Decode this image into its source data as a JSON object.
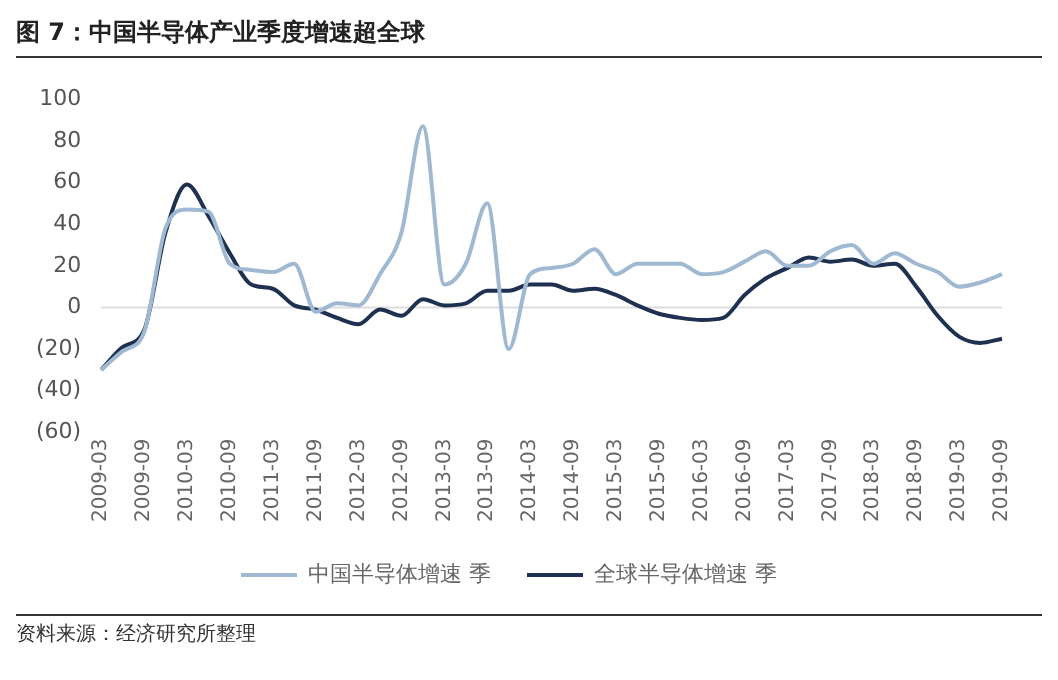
{
  "chart_data": {
    "type": "line",
    "title": "图 7：中国半导体产业季度增速超全球",
    "categories": [
      "2009-03",
      null,
      "2009-09",
      null,
      "2010-03",
      null,
      "2010-09",
      null,
      "2011-03",
      null,
      "2011-09",
      null,
      "2012-03",
      null,
      "2012-09",
      null,
      "2013-03",
      null,
      "2013-09",
      null,
      "2014-03",
      null,
      "2014-09",
      null,
      "2015-03",
      null,
      "2015-09",
      null,
      "2016-03",
      null,
      "2016-09",
      null,
      "2017-03",
      null,
      "2017-09",
      null,
      "2018-03",
      null,
      "2018-09",
      null,
      "2019-03",
      null,
      "2019-09"
    ],
    "series": [
      {
        "name": "中国半导体增速 季",
        "color": "#9fb9d3",
        "values": [
          -30,
          -21,
          -12,
          38,
          47,
          46,
          21,
          18,
          17,
          21,
          -2,
          2,
          1,
          16,
          36,
          87,
          11,
          21,
          50,
          -20,
          16,
          19,
          21,
          28,
          16,
          21,
          21,
          21,
          16,
          17,
          22,
          27,
          20,
          20,
          27,
          30,
          21,
          26,
          21,
          17,
          10,
          12,
          16
        ]
      },
      {
        "name": "全球半导体增速 季",
        "color": "#1f3150",
        "values": [
          -30,
          -19,
          -11,
          36,
          59,
          44,
          26,
          11,
          9,
          1,
          -1,
          -5,
          -8,
          -1,
          -4,
          4,
          1,
          2,
          8,
          8,
          11,
          11,
          8,
          9,
          6,
          1,
          -3,
          -5,
          -6,
          -5,
          6,
          14,
          19,
          24,
          22,
          23,
          20,
          21,
          10,
          -4,
          -14,
          -17,
          -15
        ]
      }
    ],
    "ylim": [
      -60,
      100
    ],
    "yticks": [
      {
        "value": -60,
        "label": "(60)"
      },
      {
        "value": -40,
        "label": "(40)"
      },
      {
        "value": -20,
        "label": "(20)"
      },
      0,
      20,
      40,
      60,
      80,
      100
    ],
    "ref_lines": [
      {
        "axis": "y",
        "value": 0,
        "color": "#dddddd"
      }
    ],
    "grid": false,
    "legend": "bottom",
    "marker": "none",
    "line_style": "solid",
    "annotations": [
      "资料来源：经济研究所整理"
    ]
  }
}
